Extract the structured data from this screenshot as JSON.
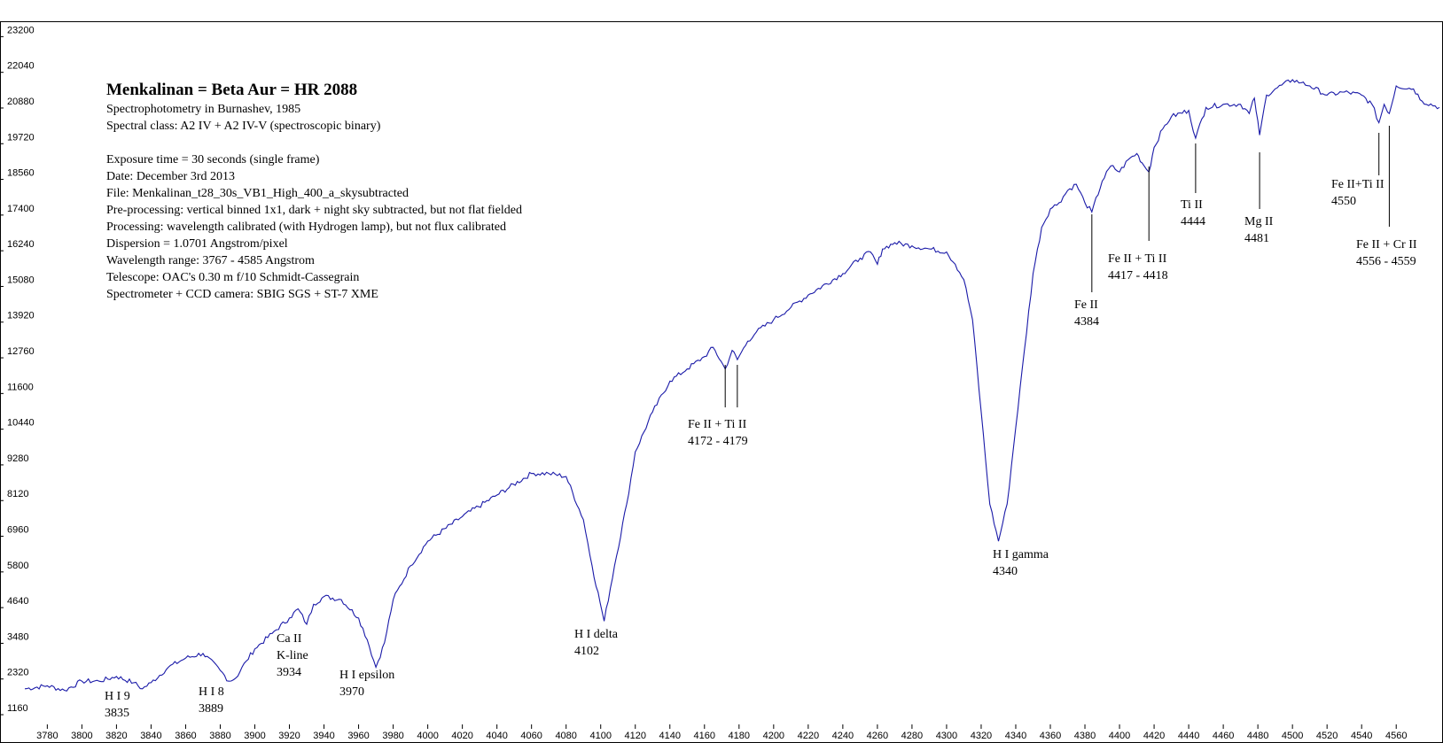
{
  "info": {
    "title": "Menkalinan = Beta Aur = HR 2088",
    "lines": [
      "Spectrophotometry in Burnashev, 1985",
      "Spectral class: A2 IV + A2 IV-V  (spectroscopic binary)",
      "",
      "Exposure time = 30 seconds (single frame)",
      "Date: December 3rd 2013",
      "File: Menkalinan_t28_30s_VB1_High_400_a_skysubtracted",
      "Pre-processing: vertical binned 1x1, dark + night sky subtracted, but not flat fielded",
      "Processing: wavelength calibrated (with Hydrogen lamp), but not flux calibrated",
      "Dispersion = 1.0701 Angstrom/pixel",
      "Wavelength range: 3767 - 4585 Angstrom",
      "Telescope: OAC's 0.30 m f/10 Schmidt-Cassegrain",
      "Spectrometer + CCD camera: SBIG SGS + ST-7 XME"
    ]
  },
  "chart_data": {
    "type": "line",
    "xlim": [
      3767,
      4585
    ],
    "ylim": [
      700,
      23700
    ],
    "x_ticks": [
      3780,
      3800,
      3820,
      3840,
      3860,
      3880,
      3900,
      3920,
      3940,
      3960,
      3980,
      4000,
      4020,
      4040,
      4060,
      4080,
      4100,
      4120,
      4140,
      4160,
      4180,
      4200,
      4220,
      4240,
      4260,
      4280,
      4300,
      4320,
      4340,
      4360,
      4380,
      4400,
      4420,
      4440,
      4460,
      4480,
      4500,
      4520,
      4540,
      4560
    ],
    "y_ticks": [
      1160,
      2320,
      3480,
      4640,
      5800,
      6960,
      8120,
      9280,
      10440,
      11600,
      12760,
      13920,
      15080,
      16240,
      17400,
      18560,
      19720,
      20880,
      22040,
      23200
    ],
    "line_color": "#1a1aa8",
    "series": [
      {
        "x": [
          3767,
          3780,
          3790,
          3800,
          3810,
          3820,
          3830,
          3835,
          3840,
          3850,
          3860,
          3870,
          3880,
          3885,
          3889,
          3895,
          3900,
          3910,
          3920,
          3925,
          3930,
          3934,
          3940,
          3950,
          3960,
          3965,
          3970,
          3975,
          3980,
          3990,
          4000,
          4020,
          4040,
          4060,
          4070,
          4080,
          4090,
          4095,
          4102,
          4108,
          4115,
          4120,
          4130,
          4140,
          4150,
          4160,
          4165,
          4172,
          4176,
          4179,
          4185,
          4190,
          4200,
          4210,
          4220,
          4240,
          4250,
          4256,
          4260,
          4263,
          4270,
          4280,
          4290,
          4300,
          4305,
          4310,
          4315,
          4320,
          4325,
          4330,
          4335,
          4340,
          4345,
          4350,
          4355,
          4360,
          4365,
          4370,
          4375,
          4380,
          4384,
          4390,
          4395,
          4400,
          4405,
          4410,
          4413,
          4417,
          4420,
          4425,
          4430,
          4440,
          4444,
          4450,
          4460,
          4470,
          4475,
          4478,
          4481,
          4485,
          4490,
          4500,
          4505,
          4510,
          4520,
          4530,
          4540,
          4546,
          4550,
          4553,
          4556,
          4560,
          4570,
          4575,
          4585
        ],
        "y": [
          2000,
          2100,
          1950,
          2250,
          2250,
          2400,
          2200,
          2000,
          2200,
          2700,
          3000,
          3150,
          2600,
          2250,
          2350,
          2900,
          3300,
          3800,
          4300,
          4600,
          4100,
          4750,
          5000,
          4900,
          4300,
          3600,
          2700,
          3500,
          4900,
          6000,
          6800,
          7600,
          8300,
          9000,
          9000,
          8900,
          7500,
          6000,
          4200,
          6000,
          8000,
          9700,
          11000,
          12000,
          12400,
          12800,
          13100,
          12400,
          13000,
          12700,
          13300,
          13600,
          14000,
          14400,
          14800,
          15500,
          16000,
          16200,
          15800,
          16300,
          16500,
          16400,
          16300,
          16200,
          15800,
          15300,
          14000,
          11000,
          8000,
          6800,
          8000,
          10500,
          13000,
          15500,
          17000,
          17600,
          17800,
          18200,
          18400,
          17800,
          17500,
          18500,
          19000,
          18800,
          19200,
          19400,
          19100,
          18800,
          19600,
          20200,
          20600,
          20800,
          19900,
          20900,
          21000,
          21000,
          20700,
          21200,
          20000,
          21300,
          21500,
          21800,
          21700,
          21600,
          21300,
          21400,
          21300,
          21000,
          20400,
          21000,
          20700,
          21600,
          21500,
          21100,
          20900
        ]
      }
    ],
    "annotations": [
      {
        "name": "H I 9",
        "wl": "3835",
        "x": 3835,
        "y": 1980
      },
      {
        "name": "H I 8",
        "wl": "3889",
        "x": 3889,
        "y": 2300
      },
      {
        "name": "Ca II",
        "name2": "K-line",
        "wl": "3934",
        "x": 3934,
        "y": 4100
      },
      {
        "name": "H I epsilon",
        "wl": "3970",
        "x": 3970,
        "y": 2700
      },
      {
        "name": "H I delta",
        "wl": "4102",
        "x": 4102,
        "y": 4200
      },
      {
        "name": "Fe II + Ti II",
        "wl": "4172 - 4179",
        "x": 4172,
        "x2": 4179,
        "y": 12400
      },
      {
        "name": "H I gamma",
        "wl": "4340",
        "x": 4340,
        "y": 6800
      },
      {
        "name": "Fe II",
        "wl": "4384",
        "x": 4384,
        "y": 17500
      },
      {
        "name": "Fe II + Ti II",
        "wl": "4417 - 4418",
        "x": 4417,
        "y": 18800
      },
      {
        "name": "Ti II",
        "wl": "4444",
        "x": 4444,
        "y": 19900
      },
      {
        "name": "Mg II",
        "wl": "4481",
        "x": 4481,
        "y": 20000
      },
      {
        "name": "Fe II+Ti II",
        "wl": "4550",
        "x": 4550,
        "y": 20400
      },
      {
        "name": "Fe II + Cr II",
        "wl": "4556 - 4559",
        "x": 4556,
        "y": 20700
      }
    ]
  }
}
